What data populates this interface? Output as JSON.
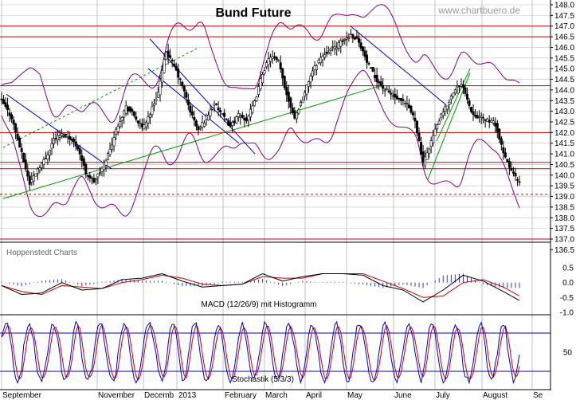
{
  "chart_data": [
    {
      "type": "candlestick",
      "title": "Bund Future",
      "watermark": "www.chartbuero.de",
      "source": "Hoppenstedt Charts",
      "ylim": [
        136.0,
        148.0
      ],
      "y_ticks": [
        "148.0",
        "147.5",
        "147.0",
        "146.5",
        "146.0",
        "145.5",
        "145.0",
        "144.5",
        "144.0",
        "143.5",
        "143.0",
        "142.5",
        "142.0",
        "141.5",
        "141.0",
        "140.5",
        "140.0",
        "139.5",
        "139.0",
        "138.5",
        "138.0",
        "137.5",
        "137.0",
        "136.5"
      ],
      "x_labels": [
        "September",
        "November",
        "Decemb",
        "2013",
        "February",
        "March",
        "April",
        "May",
        "June",
        "July",
        "August",
        "Se"
      ],
      "horizontal_lines": [
        147.0,
        146.5,
        144.2,
        142.0,
        140.6,
        140.3,
        137.0
      ],
      "dashed_line": 139.1,
      "colors": {
        "price": "#000000",
        "bands": "#800080",
        "levels": "#cc0000",
        "trend_green": "#009900",
        "trend_blue": "#0000cc",
        "macd": "#000000",
        "signal": "#cc0000",
        "histogram": "#3333cc",
        "stoch_k": "#0000cc",
        "stoch_d": "#cc0000",
        "grid": "#c0c0c0"
      },
      "close_keypoints": [
        [
          0,
          143.5
        ],
        [
          5,
          142.7
        ],
        [
          10,
          141.0
        ],
        [
          14,
          139.6
        ],
        [
          18,
          140.3
        ],
        [
          22,
          140.8
        ],
        [
          26,
          141.7
        ],
        [
          30,
          141.9
        ],
        [
          34,
          141.8
        ],
        [
          38,
          141.3
        ],
        [
          42,
          140.1
        ],
        [
          46,
          139.7
        ],
        [
          50,
          140.3
        ],
        [
          54,
          141.2
        ],
        [
          58,
          142.4
        ],
        [
          62,
          143.2
        ],
        [
          66,
          142.8
        ],
        [
          70,
          142.2
        ],
        [
          74,
          142.9
        ],
        [
          78,
          143.9
        ],
        [
          82,
          145.8
        ],
        [
          86,
          145.1
        ],
        [
          90,
          144.2
        ],
        [
          94,
          143.0
        ],
        [
          98,
          142.1
        ],
        [
          102,
          142.7
        ],
        [
          106,
          143.4
        ],
        [
          110,
          142.8
        ],
        [
          114,
          142.3
        ],
        [
          118,
          142.8
        ],
        [
          122,
          142.6
        ],
        [
          126,
          143.4
        ],
        [
          130,
          144.8
        ],
        [
          134,
          145.6
        ],
        [
          138,
          145.3
        ],
        [
          142,
          143.8
        ],
        [
          146,
          142.7
        ],
        [
          150,
          143.6
        ],
        [
          154,
          144.7
        ],
        [
          158,
          145.4
        ],
        [
          162,
          145.8
        ],
        [
          166,
          146.0
        ],
        [
          170,
          146.3
        ],
        [
          174,
          146.6
        ],
        [
          178,
          146.3
        ],
        [
          182,
          145.3
        ],
        [
          186,
          144.6
        ],
        [
          190,
          144.1
        ],
        [
          194,
          143.8
        ],
        [
          198,
          143.5
        ],
        [
          202,
          143.3
        ],
        [
          206,
          142.6
        ],
        [
          210,
          140.5
        ],
        [
          214,
          141.6
        ],
        [
          218,
          142.6
        ],
        [
          222,
          143.3
        ],
        [
          226,
          144.1
        ],
        [
          230,
          144.2
        ],
        [
          234,
          143.0
        ],
        [
          238,
          142.7
        ],
        [
          242,
          142.6
        ],
        [
          246,
          142.4
        ],
        [
          250,
          141.0
        ],
        [
          254,
          140.2
        ],
        [
          258,
          139.6
        ]
      ],
      "macd_lines": {
        "ylim": [
          -1.0,
          0.5
        ],
        "y_ticks": [
          "0.5",
          "0.0",
          "-0.5",
          "-1.0"
        ],
        "label": "MACD (12/26/9) mit Histogramm",
        "macd_keypoints": [
          [
            0,
            -0.1
          ],
          [
            10,
            -0.4
          ],
          [
            20,
            -0.35
          ],
          [
            30,
            0.0
          ],
          [
            40,
            -0.25
          ],
          [
            50,
            -0.2
          ],
          [
            60,
            0.1
          ],
          [
            70,
            0.15
          ],
          [
            80,
            0.3
          ],
          [
            90,
            0.05
          ],
          [
            100,
            -0.15
          ],
          [
            110,
            -0.1
          ],
          [
            120,
            -0.05
          ],
          [
            130,
            0.3
          ],
          [
            140,
            0.05
          ],
          [
            150,
            0.2
          ],
          [
            160,
            0.3
          ],
          [
            170,
            0.3
          ],
          [
            180,
            0.25
          ],
          [
            190,
            -0.1
          ],
          [
            200,
            -0.25
          ],
          [
            210,
            -0.65
          ],
          [
            220,
            -0.25
          ],
          [
            230,
            0.25
          ],
          [
            240,
            0.05
          ],
          [
            250,
            -0.3
          ],
          [
            258,
            -0.6
          ]
        ],
        "signal_keypoints": [
          [
            0,
            -0.1
          ],
          [
            10,
            -0.3
          ],
          [
            20,
            -0.4
          ],
          [
            30,
            -0.1
          ],
          [
            40,
            -0.15
          ],
          [
            50,
            -0.2
          ],
          [
            60,
            0.0
          ],
          [
            70,
            0.1
          ],
          [
            80,
            0.25
          ],
          [
            90,
            0.15
          ],
          [
            100,
            -0.05
          ],
          [
            110,
            -0.1
          ],
          [
            120,
            -0.05
          ],
          [
            130,
            0.2
          ],
          [
            140,
            0.15
          ],
          [
            150,
            0.15
          ],
          [
            160,
            0.3
          ],
          [
            170,
            0.3
          ],
          [
            180,
            0.3
          ],
          [
            190,
            0.05
          ],
          [
            200,
            -0.2
          ],
          [
            210,
            -0.5
          ],
          [
            220,
            -0.45
          ],
          [
            230,
            0.0
          ],
          [
            240,
            0.1
          ],
          [
            250,
            -0.15
          ],
          [
            258,
            -0.45
          ]
        ]
      },
      "stochastic": {
        "ylim": [
          0,
          100
        ],
        "y_ticks": [
          "50"
        ],
        "label": "Stochastik (5/3/3)",
        "levels": [
          80,
          20
        ]
      }
    }
  ]
}
